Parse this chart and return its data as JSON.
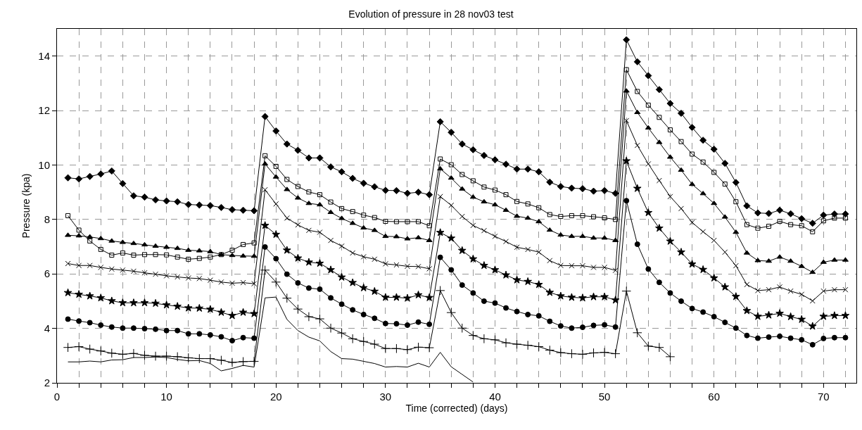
{
  "chart_data": {
    "type": "line",
    "title": "Evolution of pressure in 28 nov03 test",
    "xlabel": "Time (corrected) (days)",
    "ylabel": "Pressure (kpa)",
    "x": [
      1,
      2,
      3,
      4,
      5,
      6,
      7,
      8,
      9,
      10,
      11,
      12,
      13,
      14,
      15,
      16,
      17,
      18,
      19,
      20,
      21,
      22,
      23,
      24,
      25,
      26,
      27,
      28,
      29,
      30,
      31,
      32,
      33,
      34,
      35,
      36,
      37,
      38,
      39,
      40,
      41,
      42,
      43,
      44,
      45,
      46,
      47,
      48,
      49,
      50,
      51,
      52,
      53,
      54,
      55,
      56,
      57,
      58,
      59,
      60,
      61,
      62,
      63,
      64,
      65,
      66,
      67,
      68,
      69,
      70,
      71,
      72
    ],
    "xlim": [
      0,
      73
    ],
    "ylim": [
      2,
      15
    ],
    "xticks": [
      0,
      {
        "value": 2,
        "label": null
      },
      {
        "value": 4,
        "label": null
      },
      {
        "value": 6,
        "label": null
      },
      {
        "value": 8,
        "label": null
      },
      10,
      {
        "value": 12,
        "label": null
      },
      {
        "value": 14,
        "label": null
      },
      {
        "value": 16,
        "label": null
      },
      {
        "value": 18,
        "label": null
      },
      20,
      {
        "value": 22,
        "label": null
      },
      {
        "value": 24,
        "label": null
      },
      {
        "value": 26,
        "label": null
      },
      {
        "value": 28,
        "label": null
      },
      30,
      {
        "value": 32,
        "label": null
      },
      {
        "value": 34,
        "label": null
      },
      {
        "value": 36,
        "label": null
      },
      {
        "value": 38,
        "label": null
      },
      40,
      {
        "value": 42,
        "label": null
      },
      {
        "value": 44,
        "label": null
      },
      {
        "value": 46,
        "label": null
      },
      {
        "value": 48,
        "label": null
      },
      50,
      {
        "value": 52,
        "label": null
      },
      {
        "value": 54,
        "label": null
      },
      {
        "value": 56,
        "label": null
      },
      {
        "value": 58,
        "label": null
      },
      60,
      {
        "value": 62,
        "label": null
      },
      {
        "value": 64,
        "label": null
      },
      {
        "value": 66,
        "label": null
      },
      {
        "value": 68,
        "label": null
      },
      70,
      {
        "value": 72,
        "label": null
      }
    ],
    "yticks": [
      2,
      4,
      6,
      8,
      10,
      12,
      14
    ],
    "grid": true,
    "line_style": "solid",
    "series": [
      {
        "color": "#000000",
        "marker": "diamond",
        "values": [
          9.53,
          9.49,
          9.58,
          9.67,
          9.78,
          9.32,
          8.87,
          8.82,
          8.72,
          8.68,
          8.65,
          8.55,
          8.53,
          8.51,
          8.44,
          8.36,
          8.34,
          8.32,
          11.78,
          11.25,
          10.77,
          10.54,
          10.26,
          10.26,
          9.93,
          9.75,
          9.51,
          9.33,
          9.2,
          9.07,
          9.06,
          8.96,
          9.0,
          8.91,
          11.59,
          11.2,
          10.77,
          10.56,
          10.35,
          10.19,
          10.03,
          9.85,
          9.85,
          9.75,
          9.37,
          9.21,
          9.15,
          9.13,
          9.04,
          9.06,
          8.96,
          14.6,
          13.79,
          13.28,
          12.77,
          12.26,
          11.9,
          11.38,
          10.91,
          10.58,
          10.06,
          9.36,
          8.5,
          8.24,
          8.22,
          8.34,
          8.21,
          8.03,
          7.86,
          8.16,
          8.2,
          8.2
        ]
      },
      {
        "color": "#000000",
        "marker": "square-open",
        "values": [
          8.14,
          7.61,
          7.21,
          6.9,
          6.69,
          6.77,
          6.69,
          6.71,
          6.71,
          6.7,
          6.62,
          6.54,
          6.57,
          6.62,
          6.71,
          6.87,
          7.08,
          7.14,
          10.34,
          9.95,
          9.47,
          9.21,
          9.01,
          8.91,
          8.64,
          8.4,
          8.29,
          8.16,
          8.07,
          7.93,
          7.92,
          7.92,
          7.92,
          7.77,
          10.22,
          10.01,
          9.65,
          9.42,
          9.19,
          9.08,
          8.91,
          8.66,
          8.57,
          8.43,
          8.18,
          8.11,
          8.14,
          8.14,
          8.1,
          8.06,
          8.0,
          13.5,
          12.7,
          12.2,
          11.75,
          11.29,
          10.86,
          10.4,
          10.11,
          9.73,
          9.3,
          8.65,
          7.81,
          7.68,
          7.75,
          7.93,
          7.81,
          7.77,
          7.55,
          7.95,
          8.05,
          8.05
        ]
      },
      {
        "color": "#000000",
        "marker": "triangle",
        "values": [
          7.42,
          7.4,
          7.36,
          7.3,
          7.21,
          7.16,
          7.12,
          7.07,
          7.02,
          6.98,
          6.94,
          6.87,
          6.85,
          6.82,
          6.71,
          6.68,
          6.66,
          6.65,
          10.04,
          9.56,
          9.1,
          8.79,
          8.59,
          8.54,
          8.26,
          8.04,
          7.86,
          7.69,
          7.6,
          7.38,
          7.37,
          7.29,
          7.33,
          7.23,
          9.86,
          9.52,
          9.12,
          8.82,
          8.65,
          8.54,
          8.34,
          8.12,
          8.05,
          7.92,
          7.61,
          7.43,
          7.38,
          7.38,
          7.32,
          7.32,
          7.23,
          12.72,
          11.93,
          11.36,
          10.83,
          10.29,
          9.81,
          9.29,
          8.95,
          8.59,
          8.09,
          7.53,
          6.77,
          6.49,
          6.47,
          6.62,
          6.47,
          6.28,
          6.06,
          6.43,
          6.51,
          6.51
        ]
      },
      {
        "color": "#000000",
        "marker": "x",
        "values": [
          6.38,
          6.31,
          6.31,
          6.24,
          6.18,
          6.14,
          6.1,
          6.04,
          5.99,
          5.93,
          5.89,
          5.85,
          5.83,
          5.77,
          5.7,
          5.66,
          5.68,
          5.64,
          9.09,
          8.57,
          8.05,
          7.8,
          7.6,
          7.53,
          7.23,
          7.02,
          6.77,
          6.63,
          6.54,
          6.37,
          6.33,
          6.28,
          6.27,
          6.19,
          8.84,
          8.52,
          8.11,
          7.78,
          7.59,
          7.38,
          7.19,
          6.98,
          6.9,
          6.8,
          6.49,
          6.31,
          6.3,
          6.3,
          6.24,
          6.24,
          6.13,
          11.63,
          10.72,
          10.04,
          9.43,
          8.84,
          8.4,
          7.89,
          7.55,
          7.23,
          6.8,
          6.3,
          5.61,
          5.39,
          5.42,
          5.52,
          5.37,
          5.25,
          5.01,
          5.37,
          5.42,
          5.42
        ]
      },
      {
        "color": "#000000",
        "marker": "star",
        "values": [
          5.31,
          5.25,
          5.19,
          5.12,
          5.01,
          4.94,
          4.94,
          4.94,
          4.92,
          4.86,
          4.81,
          4.75,
          4.74,
          4.7,
          4.59,
          4.47,
          4.59,
          4.54,
          7.78,
          7.45,
          6.87,
          6.58,
          6.43,
          6.39,
          6.15,
          5.88,
          5.68,
          5.49,
          5.36,
          5.14,
          5.14,
          5.11,
          5.23,
          5.13,
          7.52,
          7.31,
          6.86,
          6.55,
          6.31,
          6.15,
          5.96,
          5.78,
          5.72,
          5.61,
          5.32,
          5.19,
          5.14,
          5.12,
          5.16,
          5.16,
          5.04,
          10.15,
          9.14,
          8.25,
          7.68,
          7.2,
          6.8,
          6.36,
          6.16,
          5.85,
          5.52,
          5.17,
          4.65,
          4.44,
          4.49,
          4.55,
          4.43,
          4.33,
          4.08,
          4.44,
          4.47,
          4.47
        ]
      },
      {
        "color": "#000000",
        "marker": "circle",
        "values": [
          4.34,
          4.27,
          4.21,
          4.12,
          4.05,
          4.01,
          4.01,
          3.99,
          3.97,
          3.92,
          3.92,
          3.8,
          3.8,
          3.76,
          3.69,
          3.55,
          3.66,
          3.64,
          6.99,
          6.56,
          5.99,
          5.67,
          5.48,
          5.44,
          5.12,
          4.89,
          4.68,
          4.51,
          4.37,
          4.18,
          4.17,
          4.12,
          4.23,
          4.15,
          6.61,
          6.15,
          5.59,
          5.3,
          5.0,
          4.93,
          4.75,
          4.62,
          4.51,
          4.46,
          4.26,
          4.09,
          4.01,
          4.04,
          4.11,
          4.13,
          4.05,
          8.69,
          7.09,
          6.18,
          5.69,
          5.3,
          5.0,
          4.73,
          4.6,
          4.43,
          4.22,
          4.01,
          3.74,
          3.64,
          3.68,
          3.71,
          3.64,
          3.58,
          3.4,
          3.63,
          3.66,
          3.66
        ]
      },
      {
        "color": "#000000",
        "marker": "cross",
        "values": [
          3.3,
          3.33,
          3.24,
          3.17,
          3.09,
          3.05,
          3.08,
          3.01,
          2.98,
          2.98,
          2.96,
          2.92,
          2.89,
          2.89,
          2.83,
          2.75,
          2.78,
          2.79,
          6.14,
          5.7,
          5.11,
          4.71,
          4.43,
          4.35,
          4.01,
          3.83,
          3.62,
          3.52,
          3.42,
          3.26,
          3.26,
          3.22,
          3.31,
          3.29,
          5.39,
          4.58,
          4.01,
          3.74,
          3.62,
          3.58,
          3.47,
          3.42,
          3.38,
          3.33,
          3.2,
          3.11,
          3.07,
          3.05,
          3.1,
          3.12,
          3.07,
          5.37,
          3.84,
          3.35,
          3.3,
          2.96,
          null,
          null,
          null,
          null,
          null,
          null,
          null,
          null,
          null,
          null,
          null,
          null,
          null,
          null,
          null,
          null
        ]
      },
      {
        "color": "#000000",
        "marker": "none",
        "values": [
          2.77,
          2.77,
          2.8,
          2.77,
          2.84,
          2.85,
          2.93,
          2.93,
          2.95,
          2.93,
          2.86,
          2.81,
          2.82,
          2.71,
          2.44,
          2.53,
          2.64,
          2.58,
          5.12,
          5.15,
          4.33,
          3.92,
          3.68,
          3.54,
          3.15,
          2.89,
          2.87,
          2.79,
          2.71,
          2.58,
          2.6,
          2.58,
          2.72,
          2.58,
          3.12,
          2.59,
          2.31,
          2.03,
          null,
          null,
          null,
          null,
          null,
          null,
          null,
          null,
          null,
          null,
          null,
          null,
          null,
          null,
          null,
          null,
          null,
          null,
          null,
          null,
          null,
          null,
          null,
          null,
          null,
          null,
          null,
          null,
          null,
          null,
          null,
          null,
          null,
          null
        ]
      }
    ]
  }
}
